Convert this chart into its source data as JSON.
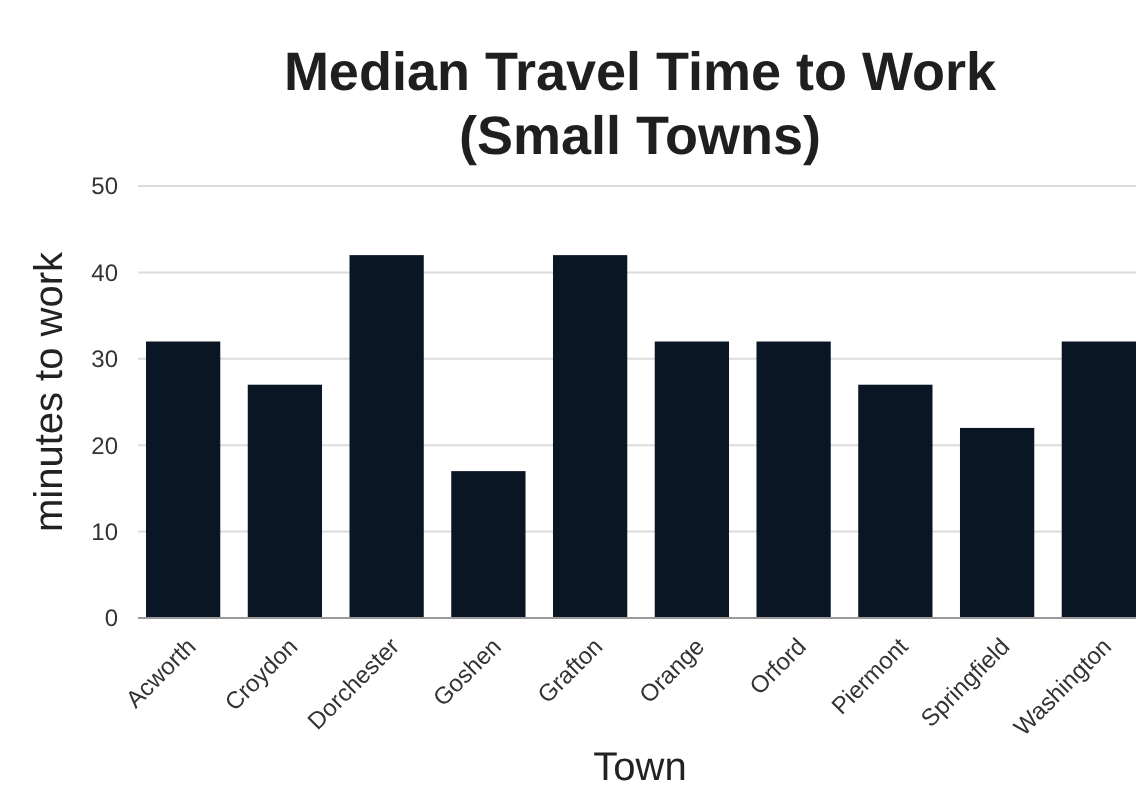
{
  "chart_data": {
    "type": "bar",
    "title": "Median Travel Time to Work\n(Small Towns)",
    "xlabel": "Town",
    "ylabel": "minutes to work",
    "categories": [
      "Acworth",
      "Croydon",
      "Dorchester",
      "Goshen",
      "Grafton",
      "Orange",
      "Orford",
      "Piermont",
      "Springfield",
      "Washington"
    ],
    "values": [
      32,
      27,
      42,
      17,
      42,
      32,
      32,
      27,
      22,
      32
    ],
    "color": "#0a1624",
    "ylim": [
      0,
      50
    ],
    "yticks": [
      0,
      10,
      20,
      30,
      40,
      50
    ],
    "grid": "y"
  }
}
